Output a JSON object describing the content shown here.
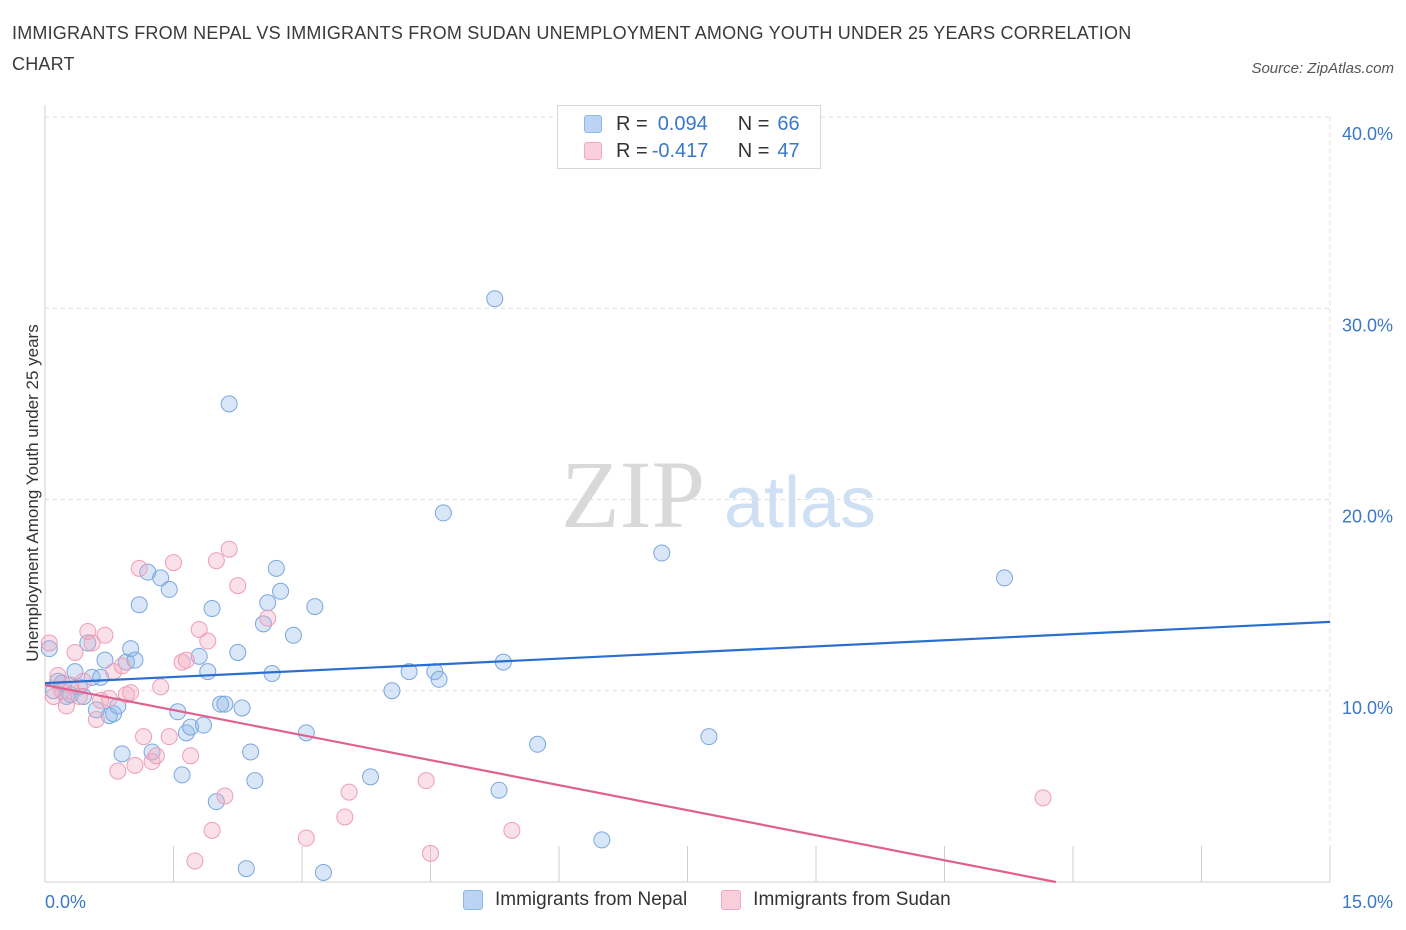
{
  "title": "IMMIGRANTS FROM NEPAL VS IMMIGRANTS FROM SUDAN UNEMPLOYMENT AMONG YOUTH UNDER 25 YEARS CORRELATION CHART",
  "source": "Source: ZipAtlas.com",
  "watermark": {
    "zip": "ZIP",
    "atlas": "atlas"
  },
  "legend": {
    "nepal": {
      "r_label": "R =",
      "r_value": "0.094",
      "n_label": "N =",
      "n_value": "66"
    },
    "sudan": {
      "r_label": "R =",
      "r_value": "-0.417",
      "n_label": "N =",
      "n_value": "47"
    }
  },
  "colors": {
    "nepal": "#8fb6e8",
    "nepal_line": "#2a6fcf",
    "sudan": "#f2a9c0",
    "sudan_line": "#e0608f",
    "axis_label": "#3a78c9"
  },
  "chart_data": {
    "type": "scatter",
    "xlabel": "",
    "ylabel": "Unemployment Among Youth under 25 years",
    "xlim": [
      0,
      15
    ],
    "ylim": [
      0,
      40
    ],
    "x_tick_labels": [
      "0.0%",
      "15.0%"
    ],
    "y_ticks": [
      10,
      20,
      30,
      40
    ],
    "y_tick_labels": [
      "10.0%",
      "20.0%",
      "30.0%",
      "40.0%"
    ],
    "grid": true,
    "legend_position": "bottom",
    "series": [
      {
        "name": "Immigrants from Nepal",
        "trend": [
          [
            0,
            10.4
          ],
          [
            15,
            13.6
          ]
        ],
        "points": [
          [
            0.05,
            12.2
          ],
          [
            0.1,
            10.0
          ],
          [
            0.15,
            10.5
          ],
          [
            0.2,
            10.4
          ],
          [
            0.25,
            9.7
          ],
          [
            0.3,
            9.8
          ],
          [
            0.35,
            11.0
          ],
          [
            0.4,
            10.2
          ],
          [
            0.5,
            12.5
          ],
          [
            0.55,
            10.7
          ],
          [
            0.65,
            10.7
          ],
          [
            0.7,
            11.6
          ],
          [
            0.75,
            8.7
          ],
          [
            0.8,
            8.8
          ],
          [
            0.9,
            6.7
          ],
          [
            0.95,
            11.5
          ],
          [
            1.0,
            12.2
          ],
          [
            1.05,
            11.6
          ],
          [
            1.1,
            14.5
          ],
          [
            1.2,
            16.2
          ],
          [
            1.25,
            6.8
          ],
          [
            1.35,
            15.9
          ],
          [
            1.45,
            15.3
          ],
          [
            1.55,
            8.9
          ],
          [
            1.6,
            5.6
          ],
          [
            1.65,
            7.8
          ],
          [
            1.7,
            8.1
          ],
          [
            1.8,
            11.8
          ],
          [
            1.85,
            8.2
          ],
          [
            1.9,
            11.0
          ],
          [
            1.95,
            14.3
          ],
          [
            2.0,
            4.2
          ],
          [
            2.05,
            9.3
          ],
          [
            2.1,
            9.3
          ],
          [
            2.15,
            25.0
          ],
          [
            2.25,
            12.0
          ],
          [
            2.3,
            9.1
          ],
          [
            2.35,
            0.7
          ],
          [
            2.4,
            6.8
          ],
          [
            2.45,
            5.3
          ],
          [
            2.55,
            13.5
          ],
          [
            2.6,
            14.6
          ],
          [
            2.65,
            10.9
          ],
          [
            2.7,
            16.4
          ],
          [
            2.75,
            15.2
          ],
          [
            2.9,
            12.9
          ],
          [
            3.05,
            7.8
          ],
          [
            3.15,
            14.4
          ],
          [
            3.25,
            0.5
          ],
          [
            3.8,
            5.5
          ],
          [
            4.05,
            10.0
          ],
          [
            4.25,
            11.0
          ],
          [
            4.55,
            11.0
          ],
          [
            4.6,
            10.6
          ],
          [
            4.65,
            19.3
          ],
          [
            5.25,
            30.5
          ],
          [
            5.3,
            4.8
          ],
          [
            5.35,
            11.5
          ],
          [
            5.75,
            7.2
          ],
          [
            6.5,
            2.2
          ],
          [
            7.2,
            17.2
          ],
          [
            7.75,
            7.6
          ],
          [
            11.2,
            15.9
          ],
          [
            0.45,
            9.7
          ],
          [
            0.6,
            9.0
          ],
          [
            0.85,
            9.2
          ]
        ]
      },
      {
        "name": "Immigrants from Sudan",
        "trend": [
          [
            0,
            10.3
          ],
          [
            11.8,
            0
          ]
        ],
        "points": [
          [
            0.05,
            12.5
          ],
          [
            0.1,
            9.7
          ],
          [
            0.15,
            10.8
          ],
          [
            0.25,
            9.2
          ],
          [
            0.3,
            10.3
          ],
          [
            0.35,
            12.0
          ],
          [
            0.4,
            9.7
          ],
          [
            0.45,
            10.5
          ],
          [
            0.5,
            13.1
          ],
          [
            0.55,
            12.5
          ],
          [
            0.6,
            8.5
          ],
          [
            0.7,
            12.9
          ],
          [
            0.75,
            9.6
          ],
          [
            0.8,
            11.0
          ],
          [
            0.85,
            5.8
          ],
          [
            0.9,
            11.3
          ],
          [
            0.95,
            9.8
          ],
          [
            1.05,
            6.1
          ],
          [
            1.1,
            16.4
          ],
          [
            1.15,
            7.6
          ],
          [
            1.25,
            6.3
          ],
          [
            1.35,
            10.2
          ],
          [
            1.45,
            7.6
          ],
          [
            1.5,
            16.7
          ],
          [
            1.6,
            11.5
          ],
          [
            1.65,
            11.6
          ],
          [
            1.7,
            6.6
          ],
          [
            1.75,
            1.1
          ],
          [
            1.8,
            13.2
          ],
          [
            1.9,
            12.6
          ],
          [
            1.95,
            2.7
          ],
          [
            2.0,
            16.8
          ],
          [
            2.1,
            4.5
          ],
          [
            2.15,
            17.4
          ],
          [
            2.25,
            15.5
          ],
          [
            2.6,
            13.8
          ],
          [
            3.05,
            2.3
          ],
          [
            3.5,
            3.4
          ],
          [
            3.55,
            4.7
          ],
          [
            4.45,
            5.3
          ],
          [
            4.5,
            1.5
          ],
          [
            5.45,
            2.7
          ],
          [
            11.65,
            4.4
          ],
          [
            0.2,
            10.0
          ],
          [
            0.65,
            9.5
          ],
          [
            1.0,
            9.9
          ],
          [
            1.3,
            6.6
          ]
        ]
      }
    ]
  }
}
